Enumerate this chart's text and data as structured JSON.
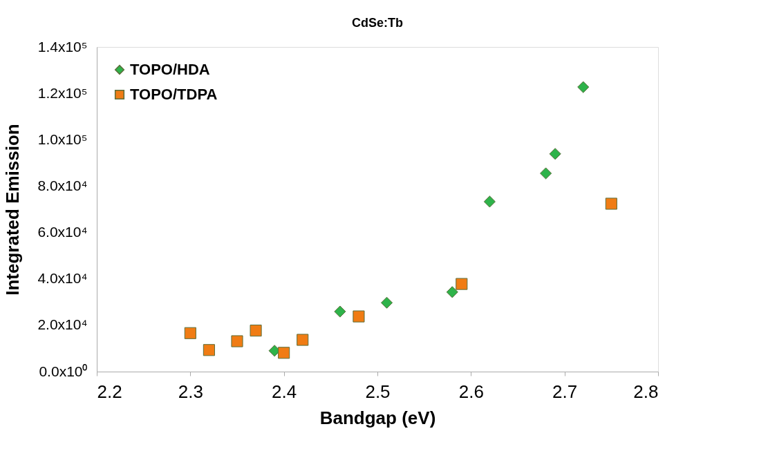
{
  "chart_data": {
    "type": "scatter",
    "title": "CdSe:Tb",
    "xlabel": "Bandgap (eV)",
    "ylabel": "Integrated Emission",
    "xlim": [
      2.2,
      2.8
    ],
    "xticks": [
      {
        "value": 2.2,
        "label": "2.2"
      },
      2.3,
      2.4,
      2.5,
      2.6,
      2.7,
      {
        "value": 2.8,
        "label": "2.8"
      }
    ],
    "ylim": [
      0,
      140000
    ],
    "yticks": [
      {
        "value": 0,
        "label": "0.0x10⁰"
      },
      {
        "value": 20000,
        "label": "2.0x10⁴"
      },
      {
        "value": 40000,
        "label": "4.0x10⁴"
      },
      {
        "value": 60000,
        "label": "6.0x10⁴"
      },
      {
        "value": 80000,
        "label": "8.0x10⁴"
      },
      {
        "value": 100000,
        "label": "1.0x10⁵"
      },
      {
        "value": 120000,
        "label": "1.2x10⁵"
      },
      {
        "value": 140000,
        "label": "1.4x10⁵"
      }
    ],
    "grid": false,
    "legend": "top left",
    "series": [
      {
        "name": "TOPO/HDA",
        "color": "#2eb34a",
        "marker": "diamond",
        "x": [
          2.39,
          2.46,
          2.51,
          2.58,
          2.62,
          2.68,
          2.69,
          2.72
        ],
        "values": [
          9000,
          25900,
          29700,
          34300,
          73300,
          85500,
          93900,
          122700
        ]
      },
      {
        "name": "TOPO/TDPA",
        "color": "#f07c14",
        "marker": "square",
        "x": [
          2.3,
          2.32,
          2.35,
          2.37,
          2.4,
          2.42,
          2.48,
          2.59,
          2.75
        ],
        "values": [
          16600,
          9300,
          13100,
          17700,
          8100,
          13700,
          23800,
          37800,
          72400
        ]
      }
    ]
  }
}
